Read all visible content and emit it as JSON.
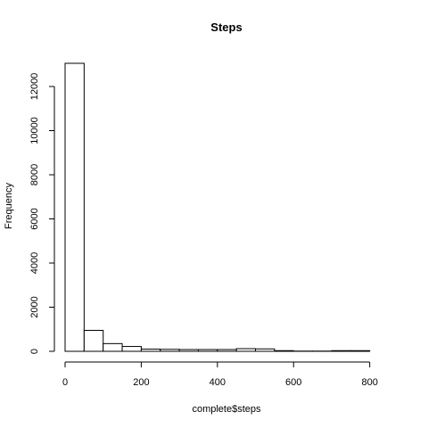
{
  "chart_data": {
    "type": "bar",
    "title": "Steps",
    "xlabel": "complete$steps",
    "ylabel": "Frequency",
    "xlim": [
      0,
      850
    ],
    "ylim": [
      0,
      13050
    ],
    "x_ticks": [
      0,
      200,
      400,
      600,
      800
    ],
    "y_ticks": [
      0,
      2000,
      4000,
      6000,
      8000,
      10000,
      12000
    ],
    "bin_edges": [
      0,
      50,
      100,
      150,
      200,
      250,
      300,
      350,
      400,
      450,
      500,
      550,
      600,
      650,
      700,
      750,
      800
    ],
    "values": [
      13050,
      950,
      350,
      220,
      100,
      90,
      80,
      80,
      80,
      120,
      110,
      30,
      10,
      10,
      30,
      30
    ],
    "grid": false,
    "colors": {
      "bar_fill": "#ffffff",
      "bar_stroke": "#000000",
      "text": "#000000"
    }
  }
}
